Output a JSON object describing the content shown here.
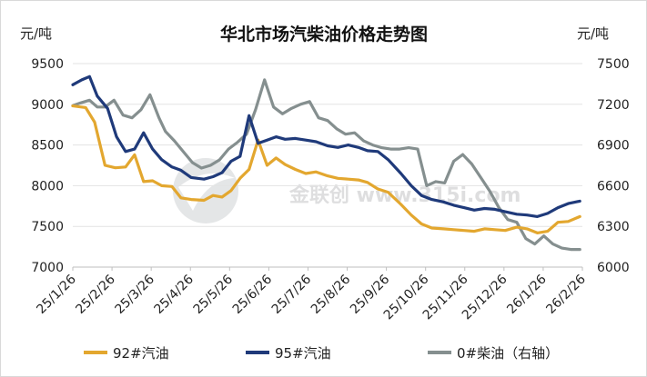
{
  "chart_data": {
    "type": "line",
    "title": "华北市场汽柴油价格走势图",
    "left_unit": "元/吨",
    "right_unit": "元/吨",
    "y_left_range": [
      7000,
      9500
    ],
    "y_left_ticks": [
      "7000",
      "7500",
      "8000",
      "8500",
      "9000",
      "9500"
    ],
    "y_right_range": [
      6000,
      7500
    ],
    "y_right_ticks": [
      "6000",
      "6300",
      "6600",
      "6900",
      "7200",
      "7500"
    ],
    "x_tick_labels": [
      "25/1/26",
      "25/2/26",
      "25/3/26",
      "25/4/26",
      "25/5/26",
      "25/6/26",
      "25/7/26",
      "25/8/26",
      "25/9/26",
      "25/10/26",
      "25/11/26",
      "25/12/26",
      "26/1/26",
      "26/2/26"
    ],
    "grid": "horizontal",
    "legend_position": "bottom",
    "watermark": "金联创 www.315i.com",
    "series": [
      {
        "name": "92#汽油",
        "axis": "left",
        "color": "#e3a72f",
        "x": [
          "2025-01-26",
          "2025-02-05",
          "2025-02-12",
          "2025-02-20",
          "2025-02-28",
          "2025-03-08",
          "2025-03-15",
          "2025-03-22",
          "2025-03-29",
          "2025-04-05",
          "2025-04-13",
          "2025-04-20",
          "2025-04-28",
          "2025-05-08",
          "2025-05-15",
          "2025-05-22",
          "2025-05-29",
          "2025-06-05",
          "2025-06-12",
          "2025-06-19",
          "2025-06-26",
          "2025-07-03",
          "2025-07-10",
          "2025-07-18",
          "2025-07-26",
          "2025-08-03",
          "2025-08-12",
          "2025-08-20",
          "2025-08-28",
          "2025-09-05",
          "2025-09-12",
          "2025-09-20",
          "2025-09-28",
          "2025-10-08",
          "2025-10-16",
          "2025-10-24",
          "2025-11-01",
          "2025-11-10",
          "2025-11-18",
          "2025-11-26",
          "2025-12-04",
          "2025-12-12",
          "2025-12-20",
          "2025-12-28",
          "2026-01-06",
          "2026-01-14",
          "2026-01-22",
          "2026-01-30",
          "2026-02-07",
          "2026-02-15",
          "2026-02-24"
        ],
        "values": [
          8980,
          8960,
          8780,
          8250,
          8220,
          8230,
          8380,
          8050,
          8060,
          8000,
          7990,
          7850,
          7830,
          7820,
          7880,
          7860,
          7940,
          8090,
          8200,
          8560,
          8250,
          8340,
          8260,
          8200,
          8150,
          8170,
          8120,
          8090,
          8080,
          8070,
          8040,
          7960,
          7920,
          7770,
          7640,
          7530,
          7480,
          7470,
          7460,
          7450,
          7440,
          7470,
          7460,
          7450,
          7490,
          7470,
          7420,
          7440,
          7550,
          7560,
          7620
        ]
      },
      {
        "name": "95#汽油",
        "axis": "left",
        "color": "#1f3a7a",
        "x": [
          "2025-01-26",
          "2025-02-02",
          "2025-02-08",
          "2025-02-14",
          "2025-02-22",
          "2025-03-01",
          "2025-03-08",
          "2025-03-15",
          "2025-03-22",
          "2025-03-29",
          "2025-04-05",
          "2025-04-13",
          "2025-04-20",
          "2025-04-28",
          "2025-05-08",
          "2025-05-15",
          "2025-05-22",
          "2025-05-29",
          "2025-06-05",
          "2025-06-12",
          "2025-06-19",
          "2025-06-26",
          "2025-07-03",
          "2025-07-10",
          "2025-07-18",
          "2025-07-26",
          "2025-08-03",
          "2025-08-12",
          "2025-08-20",
          "2025-08-28",
          "2025-09-05",
          "2025-09-12",
          "2025-09-20",
          "2025-09-28",
          "2025-10-08",
          "2025-10-16",
          "2025-10-24",
          "2025-11-01",
          "2025-11-10",
          "2025-11-18",
          "2025-11-26",
          "2025-12-04",
          "2025-12-12",
          "2025-12-20",
          "2025-12-28",
          "2026-01-06",
          "2026-01-14",
          "2026-01-22",
          "2026-01-30",
          "2026-02-07",
          "2026-02-15",
          "2026-02-24"
        ],
        "values": [
          9240,
          9300,
          9340,
          9100,
          8950,
          8600,
          8420,
          8450,
          8650,
          8450,
          8320,
          8230,
          8190,
          8100,
          8080,
          8110,
          8160,
          8300,
          8360,
          8860,
          8520,
          8560,
          8600,
          8570,
          8580,
          8560,
          8540,
          8490,
          8470,
          8500,
          8470,
          8430,
          8420,
          8320,
          8150,
          8000,
          7880,
          7830,
          7800,
          7760,
          7730,
          7700,
          7720,
          7710,
          7680,
          7650,
          7640,
          7620,
          7660,
          7730,
          7780,
          7810
        ]
      },
      {
        "name": "0#柴油（右轴）",
        "axis": "right",
        "color": "#858f8f",
        "x": [
          "2025-01-26",
          "2025-02-01",
          "2025-02-08",
          "2025-02-14",
          "2025-02-20",
          "2025-02-27",
          "2025-03-06",
          "2025-03-13",
          "2025-03-20",
          "2025-03-27",
          "2025-04-03",
          "2025-04-08",
          "2025-04-15",
          "2025-04-22",
          "2025-04-29",
          "2025-05-06",
          "2025-05-13",
          "2025-05-20",
          "2025-05-27",
          "2025-06-03",
          "2025-06-10",
          "2025-06-17",
          "2025-06-24",
          "2025-07-01",
          "2025-07-08",
          "2025-07-15",
          "2025-07-22",
          "2025-07-29",
          "2025-08-05",
          "2025-08-12",
          "2025-08-19",
          "2025-08-26",
          "2025-09-02",
          "2025-09-09",
          "2025-09-16",
          "2025-09-23",
          "2025-09-30",
          "2025-10-07",
          "2025-10-14",
          "2025-10-21",
          "2025-10-28",
          "2025-11-04",
          "2025-11-11",
          "2025-11-18",
          "2025-11-25",
          "2025-12-02",
          "2025-12-09",
          "2025-12-16",
          "2025-12-23",
          "2025-12-30",
          "2026-01-06",
          "2026-01-13",
          "2026-01-20",
          "2026-01-27",
          "2026-02-03",
          "2026-02-10",
          "2026-02-17",
          "2026-02-24"
        ],
        "values": [
          7190,
          7210,
          7230,
          7180,
          7180,
          7230,
          7120,
          7100,
          7160,
          7270,
          7100,
          7000,
          6930,
          6850,
          6770,
          6730,
          6750,
          6790,
          6870,
          6920,
          6980,
          7160,
          7380,
          7180,
          7130,
          7170,
          7200,
          7220,
          7100,
          7080,
          7020,
          6980,
          6990,
          6930,
          6900,
          6880,
          6870,
          6870,
          6880,
          6870,
          6600,
          6630,
          6620,
          6780,
          6830,
          6760,
          6660,
          6560,
          6440,
          6350,
          6330,
          6210,
          6170,
          6230,
          6170,
          6140,
          6130,
          6130
        ]
      }
    ]
  }
}
